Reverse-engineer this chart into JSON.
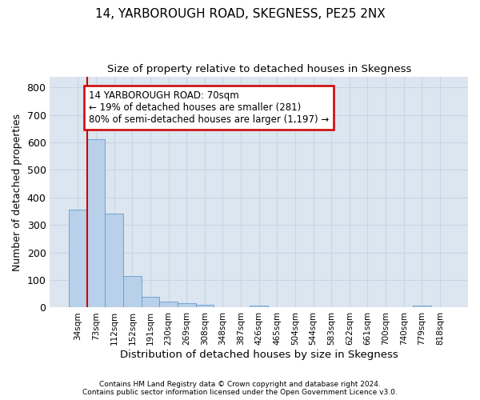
{
  "title": "14, YARBOROUGH ROAD, SKEGNESS, PE25 2NX",
  "subtitle": "Size of property relative to detached houses in Skegness",
  "xlabel": "Distribution of detached houses by size in Skegness",
  "ylabel": "Number of detached properties",
  "footnote1": "Contains HM Land Registry data © Crown copyright and database right 2024.",
  "footnote2": "Contains public sector information licensed under the Open Government Licence v3.0.",
  "bin_labels": [
    "34sqm",
    "73sqm",
    "112sqm",
    "152sqm",
    "191sqm",
    "230sqm",
    "269sqm",
    "308sqm",
    "348sqm",
    "387sqm",
    "426sqm",
    "465sqm",
    "504sqm",
    "544sqm",
    "583sqm",
    "622sqm",
    "661sqm",
    "700sqm",
    "740sqm",
    "779sqm",
    "818sqm"
  ],
  "bar_values": [
    355,
    613,
    342,
    115,
    40,
    21,
    15,
    10,
    0,
    0,
    8,
    0,
    0,
    0,
    0,
    0,
    0,
    0,
    0,
    8,
    0
  ],
  "bar_color": "#b8d0ea",
  "bar_edge_color": "#6699cc",
  "grid_color": "#c8d4e6",
  "bg_color": "#dce6f0",
  "annotation_line1": "14 YARBOROUGH ROAD: 70sqm",
  "annotation_line2": "← 19% of detached houses are smaller (281)",
  "annotation_line3": "80% of semi-detached houses are larger (1,197) →",
  "annotation_box_color": "#cc0000",
  "ylim": [
    0,
    840
  ],
  "yticks": [
    0,
    100,
    200,
    300,
    400,
    500,
    600,
    700,
    800
  ]
}
